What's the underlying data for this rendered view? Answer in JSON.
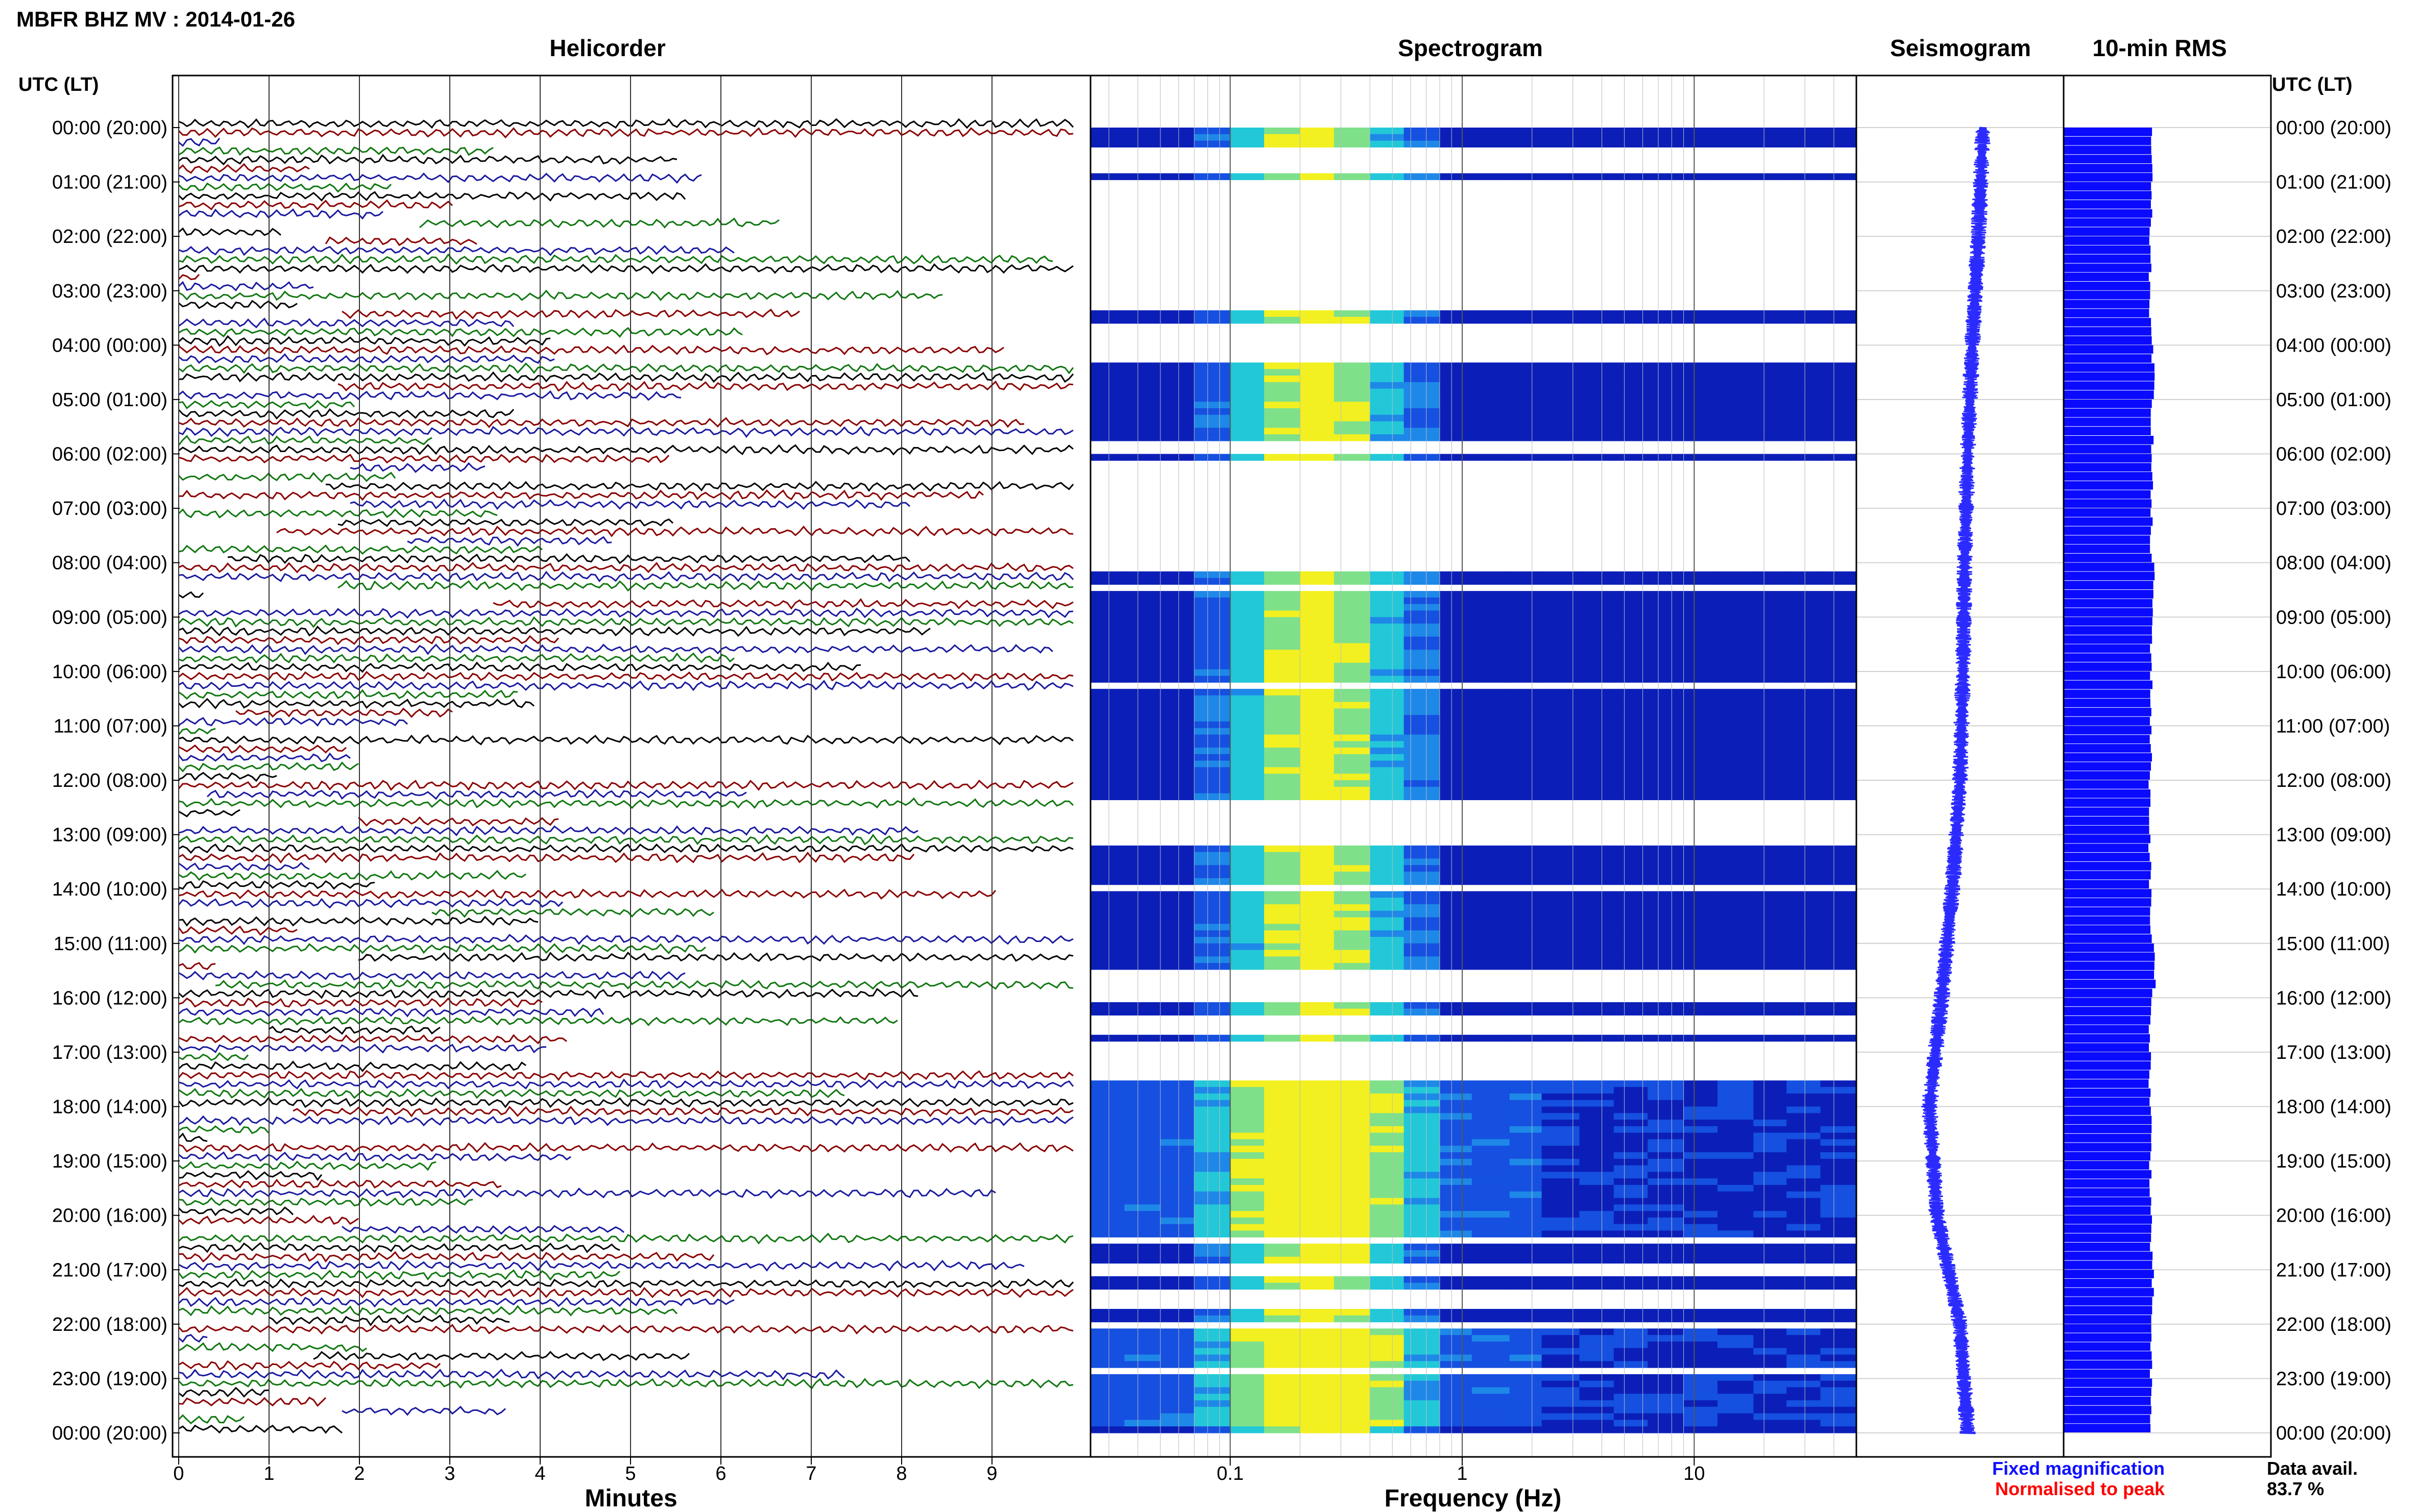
{
  "header": {
    "title": "MBFR BHZ MV : 2014-01-26"
  },
  "left_axis": {
    "label": "UTC (LT)"
  },
  "right_axis": {
    "label": "UTC (LT)"
  },
  "panels": {
    "helicorder": "Helicorder",
    "spectrogram": "Spectrogram",
    "seismogram": "Seismogram",
    "rms": "10-min RMS"
  },
  "footer": {
    "minutes_label": "Minutes",
    "frequency_label": "Frequency (Hz)",
    "fixed_magnification": "Fixed magnification",
    "normalised_to_peak": "Normalised to peak",
    "data_avail_label": "Data avail.",
    "data_avail_value": "83.7 %"
  },
  "colors": {
    "trace_colors": [
      "#000000",
      "#8b0000",
      "#1a1aa0",
      "#117711"
    ],
    "fixed_magnification": "#1010ff",
    "normalised_to_peak": "#ff0000",
    "rms_bar": "#0a0aff",
    "seismogram": "#2b2bff"
  },
  "chart_data": [
    {
      "type": "line",
      "panel": "helicorder",
      "title": "Helicorder",
      "xlabel": "Minutes",
      "x_ticks": [
        0,
        1,
        2,
        3,
        4,
        5,
        6,
        7,
        8,
        9
      ],
      "xlim": [
        0,
        10
      ],
      "y_ticks_left": [
        "00:00 (20:00)",
        "01:00 (21:00)",
        "02:00 (22:00)",
        "03:00 (23:00)",
        "04:00 (00:00)",
        "05:00 (01:00)",
        "06:00 (02:00)",
        "07:00 (03:00)",
        "08:00 (04:00)",
        "09:00 (05:00)",
        "10:00 (06:00)",
        "11:00 (07:00)",
        "12:00 (08:00)",
        "13:00 (09:00)",
        "14:00 (10:00)",
        "15:00 (11:00)",
        "16:00 (12:00)",
        "17:00 (13:00)",
        "18:00 (14:00)",
        "19:00 (15:00)",
        "20:00 (16:00)",
        "21:00 (17:00)",
        "22:00 (18:00)",
        "23:00 (19:00)",
        "00:00 (20:00)"
      ],
      "rows_per_hour": 6,
      "grid": true
    },
    {
      "type": "heatmap",
      "panel": "spectrogram",
      "title": "Spectrogram",
      "xlabel": "Frequency (Hz)",
      "x_scale": "log",
      "xlim": [
        0.025,
        50
      ],
      "x_tick_labels": [
        "0.1",
        "1",
        "10"
      ],
      "x_tick_values": [
        0.1,
        1,
        10
      ],
      "peak_frequency_hz": 0.2,
      "gap_hours": [
        [
          0.25,
          0.8
        ],
        [
          0.95,
          3.3
        ],
        [
          3.5,
          4.3
        ],
        [
          5.65,
          5.9
        ],
        [
          6.1,
          8.1
        ],
        [
          8.4,
          8.5
        ],
        [
          10.15,
          10.25
        ],
        [
          11.9,
          11.95
        ],
        [
          12.25,
          13.1
        ],
        [
          13.8,
          14.0
        ],
        [
          15.4,
          16.0
        ],
        [
          16.3,
          16.6
        ],
        [
          16.7,
          17.5
        ],
        [
          17.65,
          17.75
        ],
        [
          20.35,
          20.4
        ],
        [
          20.8,
          21.0
        ],
        [
          21.3,
          21.5
        ],
        [
          21.6,
          21.7
        ],
        [
          21.9,
          22.0
        ],
        [
          22.8,
          22.85
        ]
      ],
      "active_hours": [
        [
          17.45,
          20.35
        ],
        [
          21.95,
          23.85
        ]
      ]
    },
    {
      "type": "line",
      "panel": "seismogram",
      "title": "Seismogram",
      "hours": [
        0,
        2,
        4,
        6,
        8,
        10,
        12,
        14,
        16,
        18,
        20,
        22,
        24
      ],
      "offset": [
        0.15,
        0.12,
        0.08,
        0.05,
        0.03,
        0.02,
        0.0,
        -0.05,
        -0.12,
        -0.2,
        -0.15,
        0.0,
        0.05
      ]
    },
    {
      "type": "bar",
      "panel": "rms",
      "title": "10-min RMS",
      "orientation": "horizontal",
      "interval_minutes": 10,
      "values_by_hour": [
        0.78,
        0.76,
        0.74,
        0.75,
        0.82,
        0.8,
        0.78,
        0.77,
        0.82,
        0.78,
        0.77,
        0.76,
        0.74,
        0.74,
        0.76,
        0.84,
        0.75,
        0.74,
        0.76,
        0.76,
        0.77,
        0.8,
        0.76,
        0.76
      ]
    }
  ]
}
